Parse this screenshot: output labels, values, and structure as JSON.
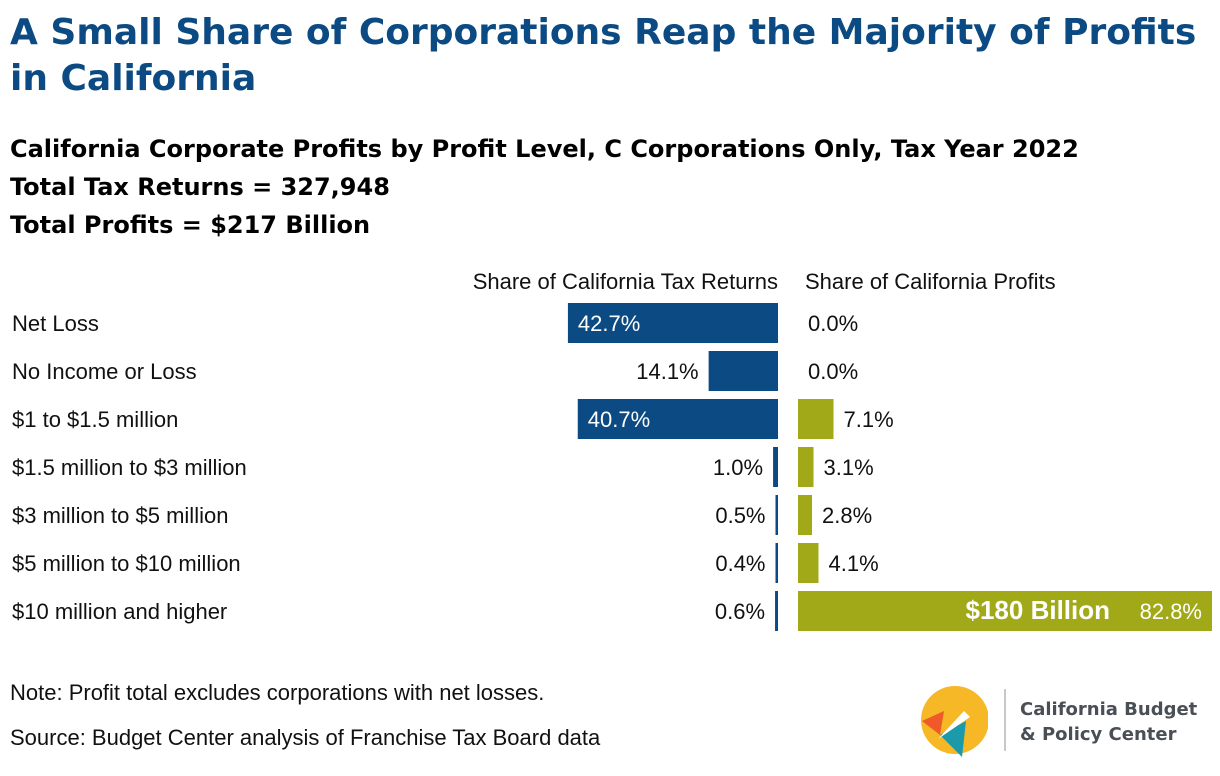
{
  "title": "A Small Share of Corporations Reap the Majority of Profits in California",
  "subtitle": "California Corporate Profits by Profit Level, C Corporations Only, Tax Year 2022",
  "total_returns": "Total Tax Returns = 327,948",
  "total_profits": "Total Profits = $217 Billion",
  "note": "Note: Profit total excludes corporations with net losses.",
  "source": "Source: Budget Center analysis of Franchise Tax Board data",
  "logo": {
    "line1": "California Budget",
    "line2": "& Policy Center"
  },
  "colors": {
    "title": "#0b4a82",
    "returns_bar": "#0b4a82",
    "profits_bar": "#a2a919"
  },
  "chart_data": {
    "type": "bar",
    "orientation": "horizontal-diverging",
    "categories": [
      "Net Loss",
      "No Income or Loss",
      "$1 to $1.5 million",
      "$1.5 million to $3 million",
      "$3 million to $5 million",
      "$5 million to $10 million",
      "$10 million and higher"
    ],
    "series": [
      {
        "name": "Share of California Tax Returns",
        "values": [
          42.7,
          14.1,
          40.7,
          1.0,
          0.5,
          0.4,
          0.6
        ],
        "labels": [
          "42.7%",
          "14.1%",
          "40.7%",
          "1.0%",
          "0.5%",
          "0.4%",
          "0.6%"
        ]
      },
      {
        "name": "Share of California Profits",
        "values": [
          0.0,
          0.0,
          7.1,
          3.1,
          2.8,
          4.1,
          82.8
        ],
        "labels": [
          "0.0%",
          "0.0%",
          "7.1%",
          "3.1%",
          "2.8%",
          "4.1%",
          "82.8%"
        ]
      }
    ],
    "annotations": [
      {
        "category": "$10 million and higher",
        "text": "$180 Billion"
      }
    ],
    "unit": "%"
  }
}
